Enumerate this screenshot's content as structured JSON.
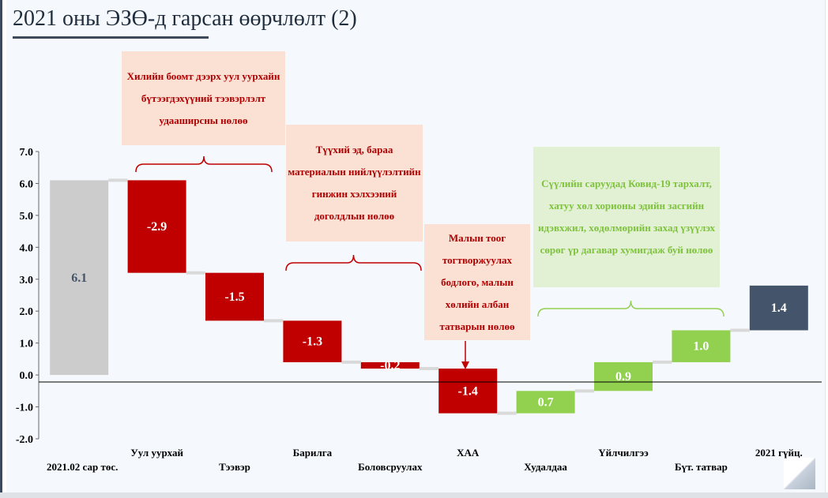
{
  "page": {
    "title": "2021 оны ЭЗӨ-д гарсан өөрчлөлт (2)"
  },
  "colors": {
    "start": "#cccccc",
    "negative": "#c00000",
    "positive": "#92d050",
    "end": "#44546a",
    "annotation_red_text": "#c00000",
    "annotation_green_text": "#7ec23d",
    "annotation_red_bg": "#fbe0d4",
    "annotation_green_bg": "#e2f0d4"
  },
  "annotations": [
    {
      "id": "mining",
      "color": "red",
      "text": "Хилийн боомт дээрх уул уурхайн бүтээгдэхүүний тээвэрлэлт удааширсны нөлөө"
    },
    {
      "id": "supply",
      "color": "red",
      "text": "Түүхий эд, бараа материалын нийлүүлэлтийн гинжин хэлхээний доголдлын нөлөө"
    },
    {
      "id": "livestock",
      "color": "red",
      "text": "Малын тоог тогтворжуулах бодлого, малын хөлийн албан татварын нөлөө"
    },
    {
      "id": "covid",
      "color": "green",
      "text": "Сүүлийн саруудад Ковид-19 тархалт, хатуу хөл хорионы эдийн засгийн идэвхжил, хөдөлмөрийн захад үзүүлэх сөрөг үр дагавар хумигдаж буй нөлөө"
    }
  ],
  "chart_data": {
    "type": "bar",
    "subtype": "waterfall",
    "categories": [
      "2021.02 сар төс.",
      "Уул уурхай",
      "Тээвэр",
      "Барилга",
      "Боловсруулах",
      "ХАА",
      "Худалдаа",
      "Үйлчилгээ",
      "Бүт. татвар",
      "2021 гүйц."
    ],
    "values": [
      6.1,
      -2.9,
      -1.5,
      -1.3,
      -0.2,
      -1.4,
      0.7,
      0.9,
      1.0,
      1.4
    ],
    "data_labels": [
      "6.1",
      "-2.9",
      "-1.5",
      "-1.3",
      "-0.2",
      "-1.4",
      "0.7",
      "0.9",
      "1.0",
      "1.4"
    ],
    "bar_kinds": [
      "start",
      "negative",
      "negative",
      "negative",
      "negative",
      "negative",
      "positive",
      "positive",
      "positive",
      "end"
    ],
    "ylim": [
      -2.0,
      7.0
    ],
    "yticks": [
      "-2.0",
      "-1.0",
      "0.0",
      "1.0",
      "2.0",
      "3.0",
      "4.0",
      "5.0",
      "6.0",
      "7.0"
    ],
    "title": "",
    "xlabel": "",
    "ylabel": "",
    "grid": false,
    "legend": "none"
  }
}
